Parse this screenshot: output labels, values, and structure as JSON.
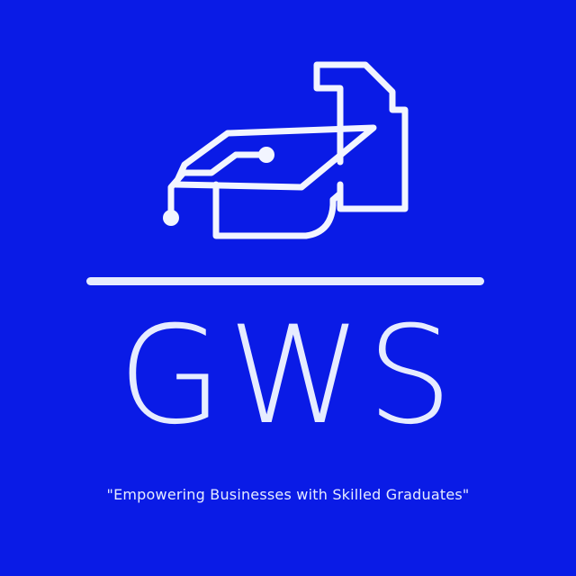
{
  "logo": {
    "icon_name": "graduation-cap-document-icon",
    "brand_name": "GWS",
    "tagline": "\"Empowering Businesses with Skilled Graduates\""
  },
  "colors": {
    "background": "#0A1BE6",
    "foreground": "#E6ECFF"
  }
}
